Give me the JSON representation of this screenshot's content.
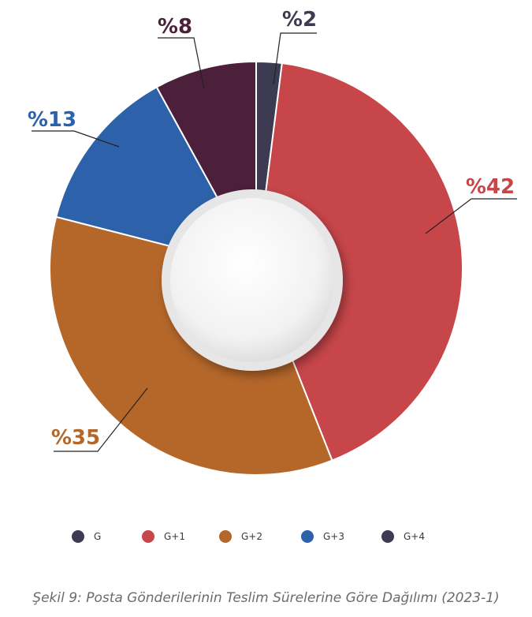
{
  "chart_data": {
    "type": "pie",
    "categories": [
      "G",
      "G+1",
      "G+2",
      "G+3",
      "G+4"
    ],
    "values": [
      2,
      42,
      35,
      13,
      8
    ],
    "labels": [
      "%2",
      "%42",
      "%35",
      "%13",
      "%8"
    ],
    "colors": [
      "#3d3b52",
      "#c7464a",
      "#b5672a",
      "#2d62aa",
      "#4c1f3b"
    ],
    "legend_colors": [
      "#3d3b52",
      "#c7464a",
      "#b5672a",
      "#2d62aa",
      "#3d3b52"
    ],
    "legend_placement": "bottom",
    "donut": true
  },
  "caption": "Şekil 9: Posta Gönderilerinin Teslim Sürelerine Göre Dağılımı (2023-1)"
}
